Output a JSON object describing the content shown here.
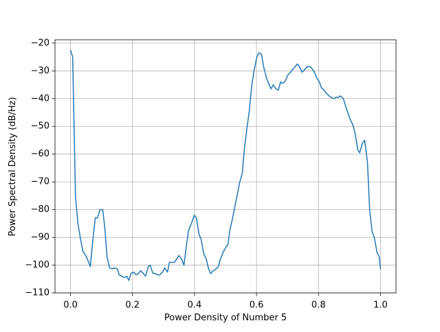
{
  "chart_data": {
    "type": "line",
    "xlabel": "Power Density of Number 5",
    "ylabel": "Power Spectral Density (dB/Hz)",
    "grid": true,
    "xlim": [
      -0.05,
      1.05
    ],
    "ylim": [
      -110,
      -18.8
    ],
    "xticks": [
      {
        "value": 0,
        "label": "0.0"
      },
      0.2,
      0.4,
      0.6,
      0.8,
      {
        "value": 1,
        "label": "1.0"
      }
    ],
    "yticks": [
      {
        "value": -110,
        "label": "−110"
      },
      {
        "value": -100,
        "label": "−100"
      },
      {
        "value": -90,
        "label": "−90"
      },
      {
        "value": -80,
        "label": "−80"
      },
      {
        "value": -70,
        "label": "−70"
      },
      {
        "value": -60,
        "label": "−60"
      },
      {
        "value": -50,
        "label": "−50"
      },
      {
        "value": -40,
        "label": "−40"
      },
      {
        "value": -30,
        "label": "−30"
      },
      {
        "value": -20,
        "label": "−20"
      }
    ],
    "x": [
      0,
      0.007,
      0.016,
      0.024,
      0.033,
      0.04,
      0.049,
      0.055,
      0.064,
      0.071,
      0.08,
      0.087,
      0.095,
      0.104,
      0.111,
      0.118,
      0.126,
      0.135,
      0.142,
      0.151,
      0.157,
      0.166,
      0.173,
      0.182,
      0.188,
      0.195,
      0.204,
      0.211,
      0.22,
      0.226,
      0.235,
      0.242,
      0.251,
      0.257,
      0.266,
      0.273,
      0.282,
      0.288,
      0.297,
      0.304,
      0.313,
      0.319,
      0.328,
      0.335,
      0.344,
      0.35,
      0.359,
      0.366,
      0.375,
      0.381,
      0.39,
      0.399,
      0.406,
      0.415,
      0.421,
      0.43,
      0.437,
      0.446,
      0.452,
      0.461,
      0.468,
      0.477,
      0.483,
      0.492,
      0.499,
      0.508,
      0.514,
      0.523,
      0.53,
      0.539,
      0.545,
      0.554,
      0.561,
      0.57,
      0.576,
      0.585,
      0.592,
      0.601,
      0.608,
      0.616,
      0.623,
      0.632,
      0.639,
      0.647,
      0.654,
      0.663,
      0.67,
      0.678,
      0.685,
      0.694,
      0.701,
      0.71,
      0.716,
      0.725,
      0.732,
      0.741,
      0.747,
      0.756,
      0.763,
      0.772,
      0.778,
      0.787,
      0.794,
      0.803,
      0.809,
      0.818,
      0.825,
      0.834,
      0.84,
      0.849,
      0.856,
      0.865,
      0.871,
      0.88,
      0.887,
      0.896,
      0.902,
      0.911,
      0.918,
      0.927,
      0.933,
      0.942,
      0.949,
      0.958,
      0.965,
      0.973,
      0.98,
      0.989,
      0.996,
      1.0
    ],
    "series": [
      {
        "color": "#1f77b4",
        "values": [
          -22.5,
          -25,
          -75,
          -85,
          -91,
          -95,
          -96.5,
          -98,
          -100.5,
          -92,
          -83,
          -83,
          -80,
          -80,
          -87,
          -97,
          -101,
          -101.3,
          -101,
          -101.3,
          -103.5,
          -104,
          -104.5,
          -104,
          -105.5,
          -103,
          -102.5,
          -103.5,
          -103,
          -102,
          -103,
          -104,
          -100.5,
          -100,
          -103,
          -103,
          -103.5,
          -103.5,
          -102.5,
          -101,
          -102.5,
          -99,
          -99,
          -99,
          -97.5,
          -96.5,
          -98,
          -100,
          -92,
          -87.5,
          -85,
          -82,
          -83,
          -89,
          -90.5,
          -96,
          -97.5,
          -101.5,
          -103,
          -102,
          -101.5,
          -100.5,
          -98,
          -95.5,
          -94,
          -92.5,
          -87.5,
          -83,
          -79,
          -74,
          -70.5,
          -67,
          -58,
          -50,
          -45,
          -35,
          -30,
          -25,
          -23.5,
          -24,
          -28.5,
          -32.5,
          -34.5,
          -36.5,
          -35,
          -36.5,
          -37,
          -34,
          -34.5,
          -33.5,
          -31.5,
          -30.5,
          -29.5,
          -28.5,
          -27.5,
          -29,
          -30.5,
          -29.5,
          -28.5,
          -28.5,
          -29,
          -30.5,
          -32.5,
          -34,
          -36,
          -37,
          -38,
          -39,
          -39.5,
          -40,
          -39.5,
          -39.5,
          -39,
          -40,
          -42.5,
          -45.5,
          -47.5,
          -49.5,
          -52.5,
          -58.5,
          -59.5,
          -56,
          -55,
          -63,
          -80,
          -88,
          -90,
          -95.5,
          -97,
          -101.5
        ]
      }
    ]
  }
}
